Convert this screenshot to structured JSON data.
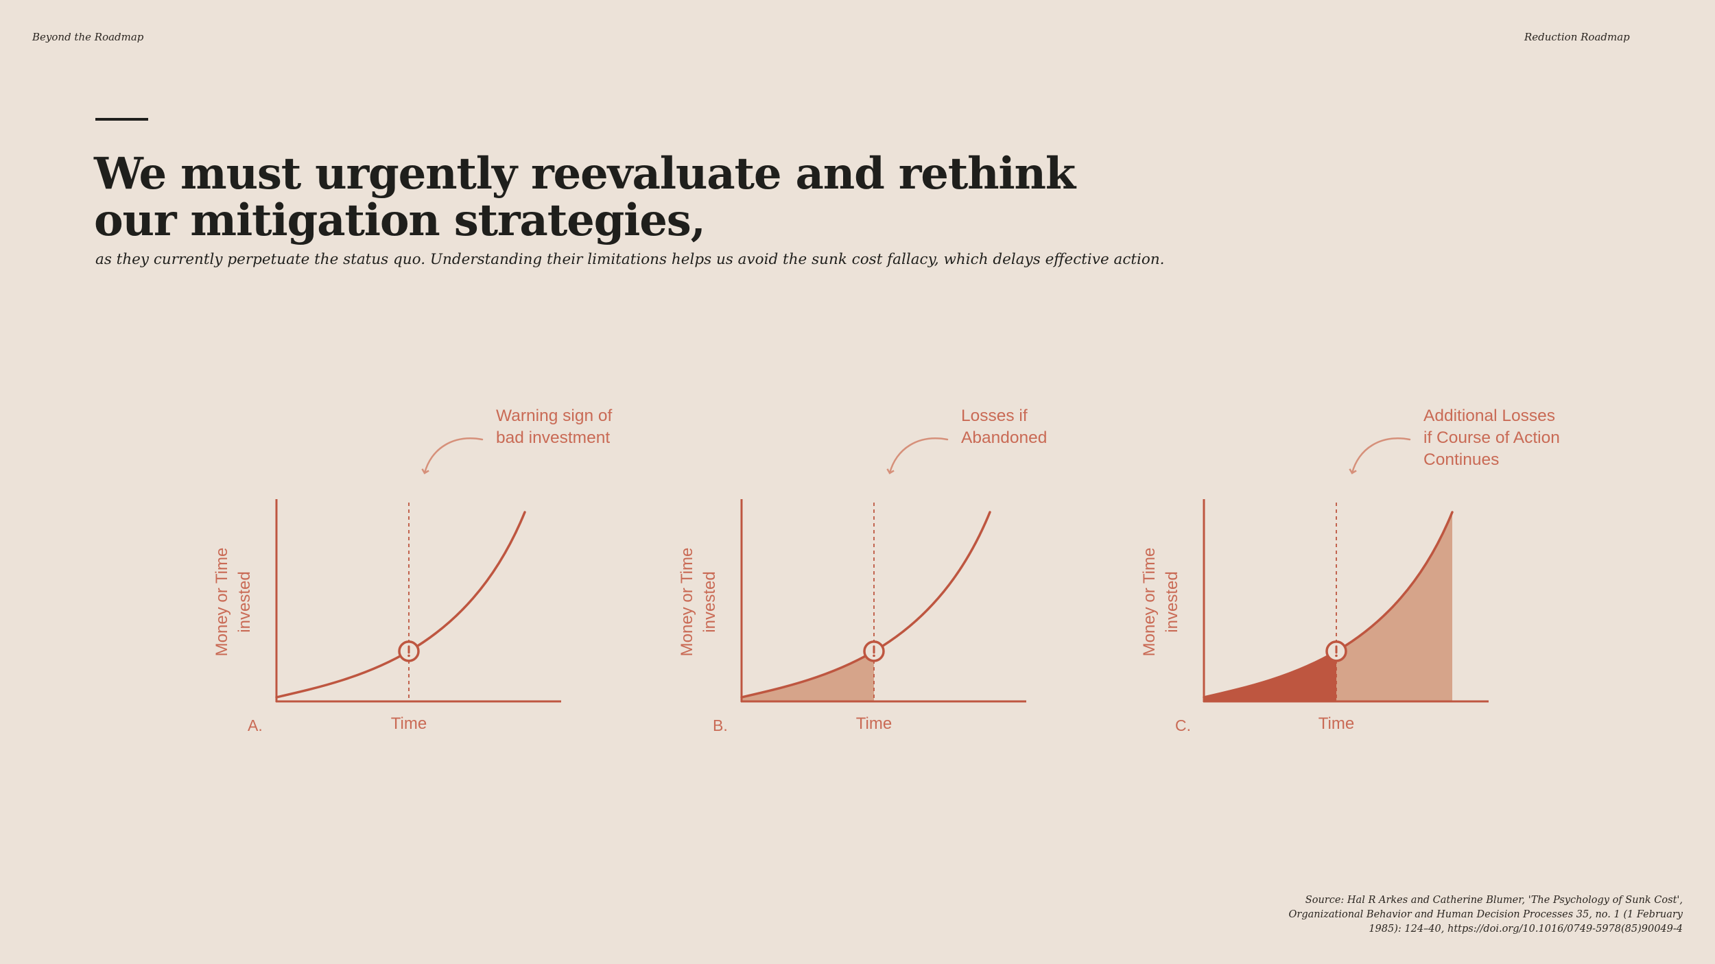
{
  "header": {
    "left": "Beyond the Roadmap",
    "right": "Reduction Roadmap"
  },
  "title": {
    "line1": "We must urgently reevaluate and rethink",
    "line2": "our mitigation strategies,"
  },
  "subtitle": "as they currently perpetuate the status quo. Understanding their limitations helps us avoid the sunk cost fallacy, which delays effective action.",
  "colors": {
    "accent": "#be5640",
    "light_fill": "#d6a48a",
    "annotation": "#c96a55",
    "background": "#ece2d8",
    "text": "#1f1f1c"
  },
  "diagrams": [
    {
      "letter": "A.",
      "ylabel": [
        "Money or Time",
        "invested"
      ],
      "xlabel": "Time",
      "annotation": [
        "Warning sign of",
        "bad investment"
      ],
      "marker_icon": "exclamation-icon",
      "shade_before": "none",
      "shade_after": "none"
    },
    {
      "letter": "B.",
      "ylabel": [
        "Money or Time",
        "invested"
      ],
      "xlabel": "Time",
      "annotation": [
        "Losses if",
        "Abandoned"
      ],
      "marker_icon": "exclamation-icon",
      "shade_before": "light",
      "shade_after": "none"
    },
    {
      "letter": "C.",
      "ylabel": [
        "Money or Time",
        "invested"
      ],
      "xlabel": "Time",
      "annotation": [
        "Additional Losses",
        "if Course of Action",
        "Continues"
      ],
      "marker_icon": "exclamation-icon",
      "shade_before": "dark",
      "shade_after": "light"
    }
  ],
  "source": {
    "lines": [
      "Source: Hal R Arkes and Catherine Blumer, 'The Psychology of Sunk Cost',",
      "Organizational Behavior and Human Decision Processes 35, no. 1 (1 February",
      "1985): 124–40, https://doi.org/10.1016/0749-5978(85)90049-4"
    ]
  }
}
